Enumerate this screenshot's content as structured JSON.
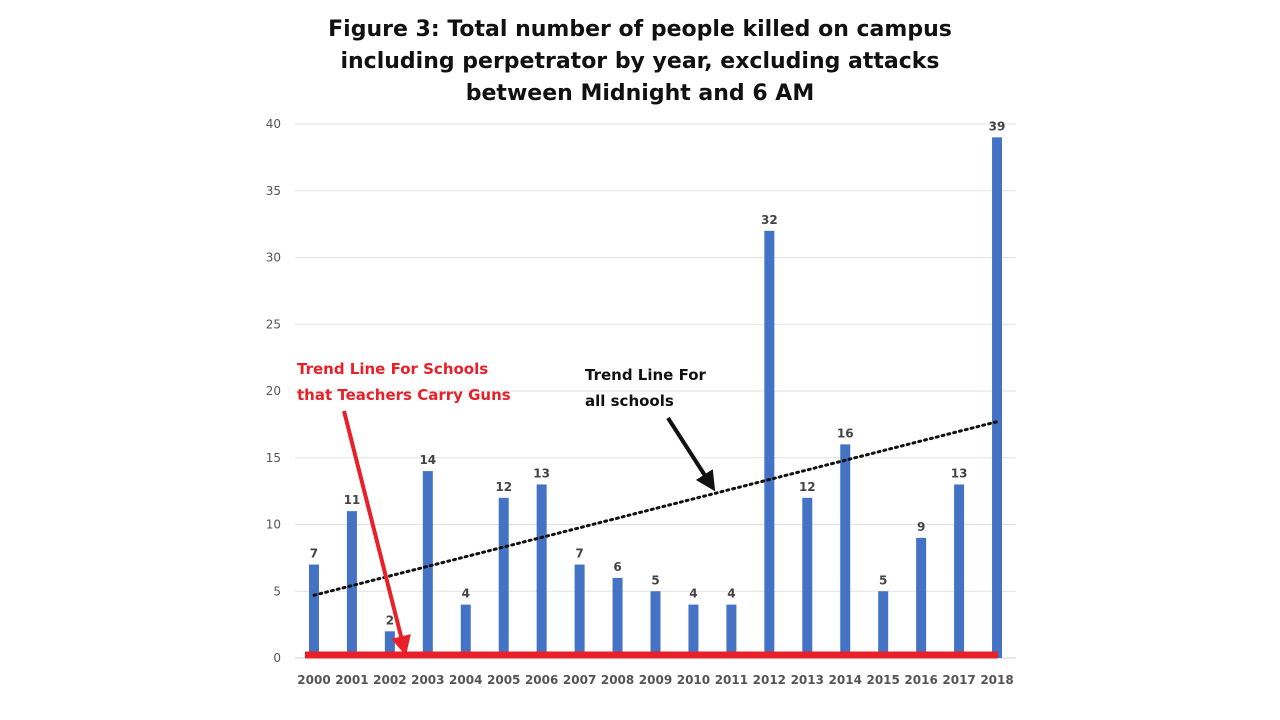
{
  "chart_data": {
    "type": "bar",
    "title_lines": [
      "Figure 3: Total number of people killed on campus",
      "including perpetrator by year, excluding attacks",
      "between Midnight and 6 AM"
    ],
    "categories": [
      "2000",
      "2001",
      "2002",
      "2003",
      "2004",
      "2005",
      "2006",
      "2007",
      "2008",
      "2009",
      "2010",
      "2011",
      "2012",
      "2013",
      "2014",
      "2015",
      "2016",
      "2017",
      "2018"
    ],
    "values": [
      7,
      11,
      2,
      14,
      4,
      12,
      13,
      7,
      6,
      5,
      4,
      4,
      32,
      12,
      16,
      5,
      9,
      13,
      39
    ],
    "xlabel": "",
    "ylabel": "",
    "ylim": [
      0,
      40
    ],
    "yticks": [
      0,
      5,
      10,
      15,
      20,
      25,
      30,
      35,
      40
    ],
    "grid": true,
    "bar_color": "#4472c4",
    "trend_all": {
      "label_lines": [
        "Trend Line For",
        "all schools"
      ],
      "start_value": 4.7,
      "end_value": 17.7,
      "color": "#111111",
      "style": "dotted"
    },
    "trend_teachers": {
      "label_lines": [
        "Trend Line For Schools",
        "that Teachers Carry Guns"
      ],
      "value": 0,
      "color": "#e8202a"
    }
  }
}
